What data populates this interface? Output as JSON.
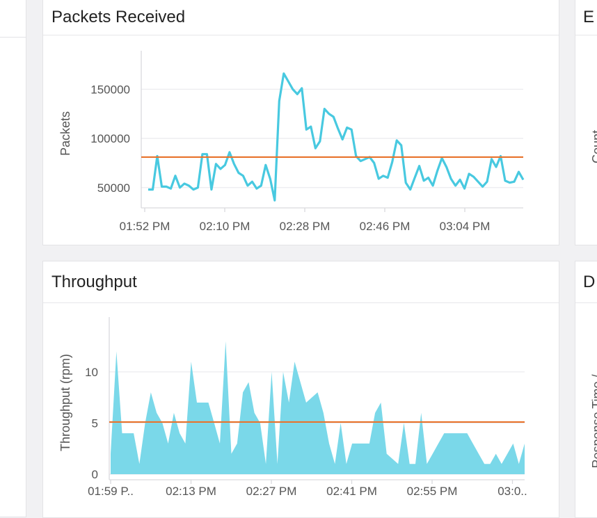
{
  "panels": {
    "packets": {
      "title": "Packets Received"
    },
    "throughput": {
      "title": "Throughput"
    },
    "right_top": {
      "title_fragment": "E",
      "ylabel_fragment": "Count"
    },
    "right_bottom": {
      "title_fragment": "D",
      "ylabel_fragment": "Response Time /"
    }
  },
  "colors": {
    "series": "#48c9e0",
    "area_fill": "#7ad8e9",
    "threshold": "#e8732c"
  },
  "chart_data": [
    {
      "type": "line",
      "title": "Packets Received",
      "ylabel": "Packets",
      "xlabel": "",
      "ylim": [
        35000,
        175000
      ],
      "yticks": [
        50000,
        100000,
        150000
      ],
      "ytick_labels": [
        "50000",
        "100000",
        "150000"
      ],
      "xticks": [
        "01:52 PM",
        "02:10 PM",
        "02:28 PM",
        "02:46 PM",
        "03:04 PM"
      ],
      "threshold": 81000,
      "series": [
        {
          "values": [
            48000,
            48000,
            82000,
            51000,
            51000,
            49000,
            62000,
            50000,
            54000,
            52000,
            48000,
            50000,
            84000,
            84000,
            48000,
            74000,
            69000,
            73000,
            86000,
            74000,
            65000,
            62000,
            52000,
            56000,
            49000,
            52000,
            73000,
            59000,
            37000,
            138000,
            166000,
            158000,
            150000,
            145000,
            151000,
            109000,
            112000,
            90000,
            97000,
            130000,
            125000,
            122000,
            110000,
            99000,
            111000,
            109000,
            82000,
            77000,
            79000,
            81000,
            75000,
            59000,
            62000,
            60000,
            76000,
            98000,
            93000,
            55000,
            48000,
            60000,
            72000,
            57000,
            60000,
            52000,
            67000,
            80000,
            71000,
            59000,
            52000,
            58000,
            49000,
            64000,
            61000,
            56000,
            51000,
            56000,
            79000,
            71000,
            82000,
            57000,
            55000,
            56000,
            66000,
            58000
          ]
        }
      ]
    },
    {
      "type": "area",
      "title": "Throughput",
      "ylabel": "Throughput (rpm)",
      "xlabel": "",
      "ylim": [
        0,
        14
      ],
      "yticks": [
        0,
        5,
        10
      ],
      "ytick_labels": [
        "0",
        "5",
        "10"
      ],
      "xticks": [
        "01:59 P..",
        "02:13 PM",
        "02:27 PM",
        "02:41 PM",
        "02:55 PM",
        "03:0.."
      ],
      "threshold": 5.1,
      "series": [
        {
          "values": [
            2,
            12,
            4,
            4,
            4,
            1,
            5,
            8,
            6,
            5,
            3,
            6,
            4,
            3,
            11,
            7,
            7,
            7,
            5,
            3,
            13,
            2,
            3,
            8,
            9,
            6,
            5,
            1,
            10,
            1,
            10,
            7,
            11,
            9,
            7,
            7.5,
            8,
            6,
            3,
            1,
            5,
            1,
            3,
            3,
            3,
            3,
            6,
            7,
            2,
            1.5,
            1,
            5,
            1,
            1,
            6,
            1,
            2,
            3,
            4,
            4,
            4,
            4,
            4,
            3,
            2,
            1,
            1,
            2,
            1,
            2,
            3,
            1,
            3
          ]
        }
      ]
    }
  ]
}
